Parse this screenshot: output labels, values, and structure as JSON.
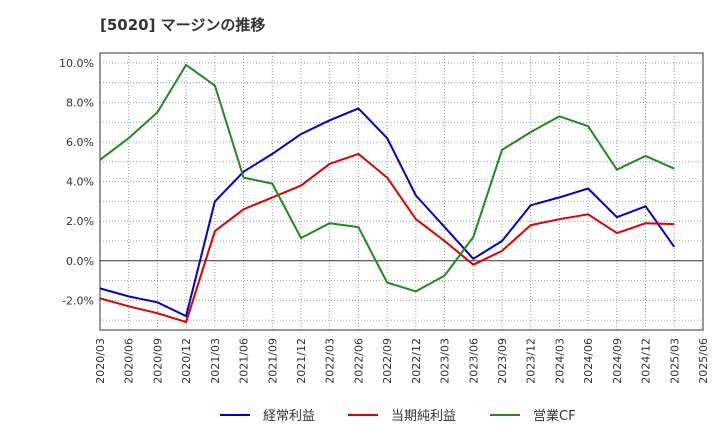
{
  "title": "[5020]  マージンの推移",
  "chart_data": {
    "type": "line",
    "title": "[5020]  マージンの推移",
    "xlabel": "",
    "ylabel": "",
    "ylim": [
      -3.5,
      10.5
    ],
    "y_ticks": [
      -2.0,
      0.0,
      2.0,
      4.0,
      6.0,
      8.0,
      10.0
    ],
    "y_tick_labels": [
      "-2.0%",
      "0.0%",
      "2.0%",
      "4.0%",
      "6.0%",
      "8.0%",
      "10.0%"
    ],
    "x": [
      "2020/03",
      "2020/06",
      "2020/09",
      "2020/12",
      "2021/03",
      "2021/06",
      "2021/09",
      "2021/12",
      "2022/03",
      "2022/06",
      "2022/09",
      "2022/12",
      "2023/03",
      "2023/06",
      "2023/09",
      "2023/12",
      "2024/03",
      "2024/06",
      "2024/09",
      "2024/12",
      "2025/03",
      "2025/06"
    ],
    "grid": true,
    "legend_position": "bottom",
    "series": [
      {
        "name": "経常利益",
        "color": "#0000cc",
        "values": [
          -1.4,
          -1.8,
          -2.1,
          -2.8,
          3.0,
          4.5,
          5.4,
          6.4,
          7.1,
          7.7,
          6.2,
          3.3,
          1.7,
          0.1,
          1.0,
          2.8,
          3.2,
          3.65,
          2.2,
          2.75,
          0.7,
          null
        ]
      },
      {
        "name": "当期純利益",
        "color": "#dd0000",
        "values": [
          -1.9,
          -2.3,
          -2.65,
          -3.1,
          1.5,
          2.6,
          3.2,
          3.8,
          4.9,
          5.4,
          4.2,
          2.1,
          1.0,
          -0.2,
          0.5,
          1.8,
          2.1,
          2.35,
          1.4,
          1.9,
          1.85,
          null
        ]
      },
      {
        "name": "営業CF",
        "color": "#228822",
        "values": [
          5.1,
          6.2,
          7.5,
          9.9,
          8.85,
          4.2,
          3.9,
          1.15,
          1.9,
          1.7,
          -1.1,
          -1.55,
          -0.75,
          1.2,
          5.6,
          6.5,
          7.3,
          6.8,
          4.6,
          5.3,
          4.65,
          null
        ]
      }
    ]
  }
}
